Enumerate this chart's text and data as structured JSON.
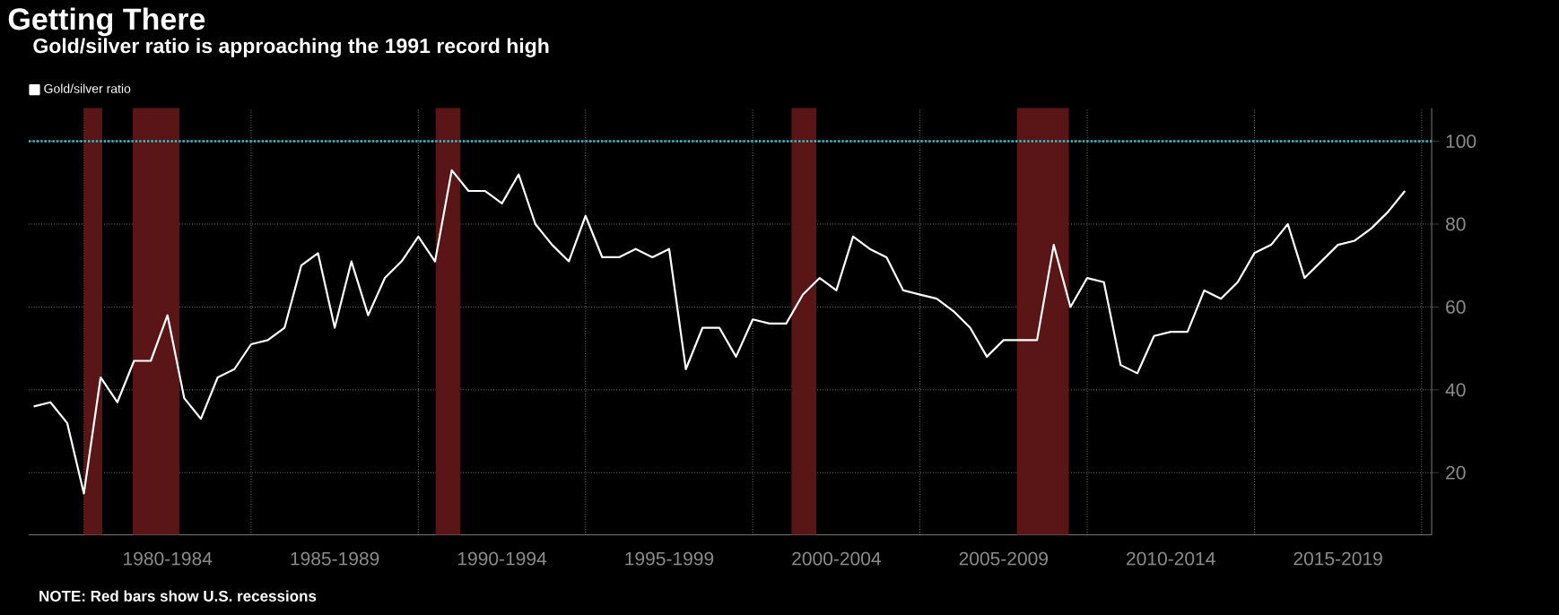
{
  "chart_data": {
    "type": "line",
    "title": "Getting There",
    "subtitle": "Gold/silver ratio is approaching the 1991 record high",
    "annotations": [
      "NOTE: Red bars show U.S. recessions"
    ],
    "categories": [
      null,
      null,
      null,
      null,
      null,
      null,
      null,
      null,
      "1980-1984",
      null,
      null,
      null,
      null,
      null,
      null,
      null,
      null,
      null,
      "1985-1989",
      null,
      null,
      null,
      null,
      null,
      null,
      null,
      null,
      null,
      "1990-1994",
      null,
      null,
      null,
      null,
      null,
      null,
      null,
      null,
      null,
      "1995-1999",
      null,
      null,
      null,
      null,
      null,
      null,
      null,
      null,
      null,
      "2000-2004",
      null,
      null,
      null,
      null,
      null,
      null,
      null,
      null,
      null,
      "2005-2009",
      null,
      null,
      null,
      null,
      null,
      null,
      null,
      null,
      null,
      "2010-2014",
      null,
      null,
      null,
      null,
      null,
      null,
      null,
      null,
      null,
      "2015-2019",
      null,
      null,
      null,
      null
    ],
    "series": [
      {
        "name": "Gold/silver ratio",
        "color": "#ffffff",
        "values": [
          36,
          37,
          32,
          15,
          43,
          37,
          47,
          47,
          58,
          38,
          33,
          43,
          45,
          51,
          52,
          55,
          70,
          73,
          55,
          71,
          58,
          67,
          71,
          77,
          71,
          93,
          88,
          88,
          85,
          92,
          80,
          75,
          71,
          82,
          72,
          72,
          74,
          72,
          74,
          45,
          55,
          55,
          48,
          57,
          56,
          56,
          63,
          67,
          64,
          77,
          74,
          72,
          64,
          63,
          62,
          59,
          55,
          48,
          52,
          52,
          52,
          75,
          60,
          67,
          66,
          46,
          44,
          53,
          54,
          54,
          64,
          62,
          66,
          73,
          75,
          80,
          67,
          71,
          75,
          76,
          79,
          83,
          88
        ]
      }
    ],
    "ylim": [
      5,
      108
    ],
    "yticks": [
      20,
      40,
      60,
      80,
      100
    ],
    "ref_lines": [
      {
        "axis": "y",
        "value": 100,
        "color": "#2ec4d0",
        "line_style": "dotted"
      }
    ],
    "grid": true,
    "legend": "top left",
    "line_style": "solid",
    "marker": "none"
  }
}
